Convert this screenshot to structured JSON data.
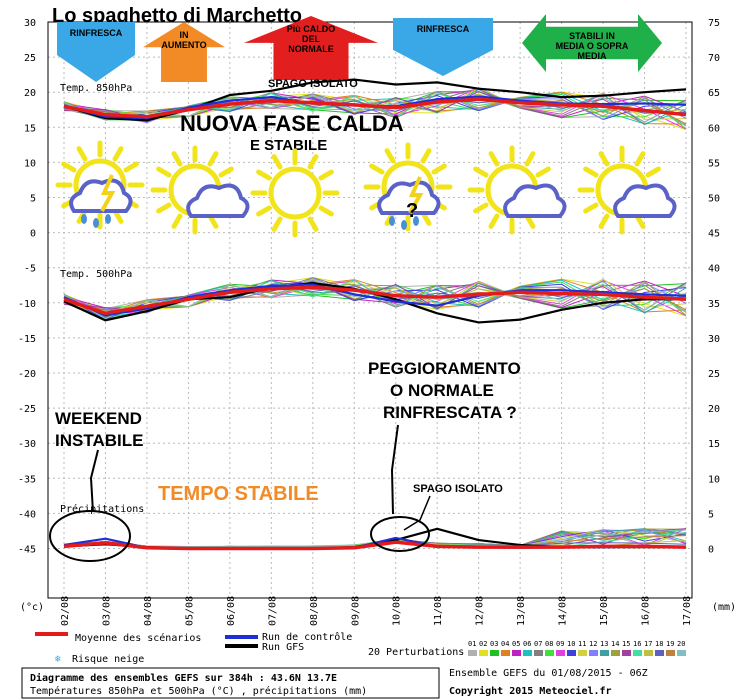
{
  "chart_data": {
    "type": "line",
    "title": "Lo spaghetto di Marchetto",
    "left_ticks": [
      "30",
      "25",
      "20",
      "15",
      "10",
      "5",
      "0",
      "-5",
      "-10",
      "-15",
      "-20",
      "-25",
      "-30",
      "-35",
      "-40",
      "-45"
    ],
    "right_ticks_upper": [
      "75",
      "70",
      "65",
      "60",
      "55",
      "50",
      "45"
    ],
    "right_ticks_lower": [
      "40",
      "35",
      "30",
      "25",
      "20",
      "15",
      "10",
      "5",
      "0"
    ],
    "left_unit": "(°c)",
    "right_unit": "(mm)",
    "x_labels": [
      "02/08",
      "03/08",
      "04/08",
      "05/08",
      "06/08",
      "07/08",
      "08/08",
      "09/08",
      "10/08",
      "11/08",
      "12/08",
      "13/08",
      "14/08",
      "15/08",
      "16/08",
      "17/08"
    ],
    "panel_labels": {
      "t850": "Temp. 850hPa",
      "t500": "Temp. 500hPa",
      "precip": "Précipitations"
    },
    "grid": true,
    "series": [
      {
        "name": "Moyenne des scénarios",
        "color": "#e51b1b",
        "t850": [
          18,
          16.8,
          16.5,
          17.5,
          18.3,
          18.8,
          18.5,
          18.2,
          17.8,
          18.6,
          19,
          18.5,
          18.2,
          18,
          17.4,
          16.8
        ],
        "t500": [
          -9.5,
          -11.5,
          -10.5,
          -9.5,
          -8.5,
          -8,
          -7.8,
          -8.2,
          -9,
          -9.2,
          -8.8,
          -8.5,
          -8.7,
          -8.8,
          -9.2,
          -9.5
        ],
        "precip": [
          0.3,
          0.8,
          0.1,
          0,
          0,
          0,
          0,
          0.1,
          0.9,
          0.3,
          0.2,
          0.2,
          0.2,
          0.3,
          0.3,
          0.2
        ]
      },
      {
        "name": "Run de contrôle",
        "color": "#1f2fd8",
        "t850": [
          18,
          16.5,
          16.3,
          17.8,
          18.8,
          19.3,
          18.4,
          18.1,
          18,
          19,
          19.4,
          18.8,
          18.4,
          18.3,
          18.4,
          18.2
        ],
        "t500": [
          -9.2,
          -11.8,
          -10.8,
          -9.2,
          -8.2,
          -7.6,
          -7.4,
          -8.8,
          -9.8,
          -10.4,
          -9,
          -8.2,
          -8.2,
          -8.5,
          -8.8,
          -9
        ],
        "precip": [
          0.5,
          1.4,
          0.1,
          0,
          0,
          0,
          0,
          0.1,
          1.5,
          0.3,
          0.2,
          0.1,
          0.2,
          0.2,
          0.3,
          0.2
        ]
      },
      {
        "name": "Run GFS",
        "color": "#000000",
        "t850": [
          18,
          16.3,
          16,
          17.5,
          19.6,
          20.2,
          21.4,
          21.8,
          21.1,
          21.4,
          20.5,
          20,
          19.3,
          19.5,
          20,
          20.4
        ],
        "t500": [
          -9.8,
          -12.5,
          -11.2,
          -9.5,
          -9.2,
          -7.8,
          -7.2,
          -8,
          -9.5,
          -11.5,
          -12.8,
          -12.4,
          -11,
          -10,
          -9.5,
          -9.5
        ],
        "precip": [
          0.3,
          0.6,
          0.2,
          0,
          0,
          0,
          0,
          0.2,
          1.2,
          2.8,
          1.2,
          0.5,
          0.2,
          0.2,
          0.2,
          0.2
        ]
      },
      {
        "name": "20 Perturbations",
        "colors": [
          "#b0b0b0",
          "#e0e020",
          "#20c020",
          "#e08020",
          "#c020c0",
          "#20c0c0",
          "#808080",
          "#40e040",
          "#e040e0",
          "#4040e0",
          "#d0d040",
          "#8080ff",
          "#40a0a0",
          "#a0a040",
          "#a040a0",
          "#40e0a0",
          "#c0c040",
          "#6060c0",
          "#c08040",
          "#80c0c0"
        ]
      }
    ]
  },
  "legend": {
    "mean": "Moyenne des scénarios",
    "control": "Run de contrôle",
    "gfs": "Run GFS",
    "snow": "Risque neige",
    "perturb": "20 Perturbations",
    "perturb_numbers": [
      "01",
      "02",
      "03",
      "04",
      "05",
      "06",
      "07",
      "08",
      "09",
      "10",
      "11",
      "12",
      "13",
      "14",
      "15",
      "16",
      "17",
      "18",
      "19",
      "20"
    ]
  },
  "footer": {
    "line1": "Diagramme des ensembles GEFS sur 384h : 43.6N 13.7E",
    "line2": "Températures 850hPa et 500hPa (°C) , précipitations (mm)",
    "ensemble": "Ensemble GEFS du 01/08/2015 - 06Z",
    "copyright": "Copyright 2015 Meteociel.fr"
  },
  "annotations": {
    "arrows": [
      {
        "label": "RINFRESCA",
        "color": "#3aa7e6",
        "dir": "down"
      },
      {
        "label": "IN AUMENTO",
        "color": "#f28a26",
        "dir": "up"
      },
      {
        "label": "Più CALDO DEL NORMALE",
        "color": "#e31e1e",
        "dir": "up"
      },
      {
        "label": "RINFRESCA",
        "color": "#3aa7e6",
        "dir": "down"
      },
      {
        "label": "STABILI IN MEDIA O SOPRA MEDIA",
        "color": "#20b04a",
        "dir": "both"
      }
    ],
    "spago_isolato_top": "SPAGO ISOLATO",
    "nuova_fase_1": "NUOVA FASE CALDA",
    "nuova_fase_2": "E STABILE",
    "question_mark": "?",
    "weekend": [
      "WEEKEND",
      "INSTABILE"
    ],
    "tempo_stabile": "TEMPO STABILE",
    "peggioramento": [
      "PEGGIORAMENTO",
      "O NORMALE",
      "RINFRESCATA ?"
    ],
    "spago_isolato_bottom": "SPAGO ISOLATO",
    "weather_icons": [
      "sun-storm-rain-icon",
      "sun-cloud-icon",
      "sun-icon",
      "sun-storm-rain-icon",
      "sun-cloud-icon",
      "sun-cloud-icon"
    ],
    "colors": {
      "title": "#000000",
      "tempo_stabile": "#f28a26",
      "text_black": "#000000"
    }
  }
}
